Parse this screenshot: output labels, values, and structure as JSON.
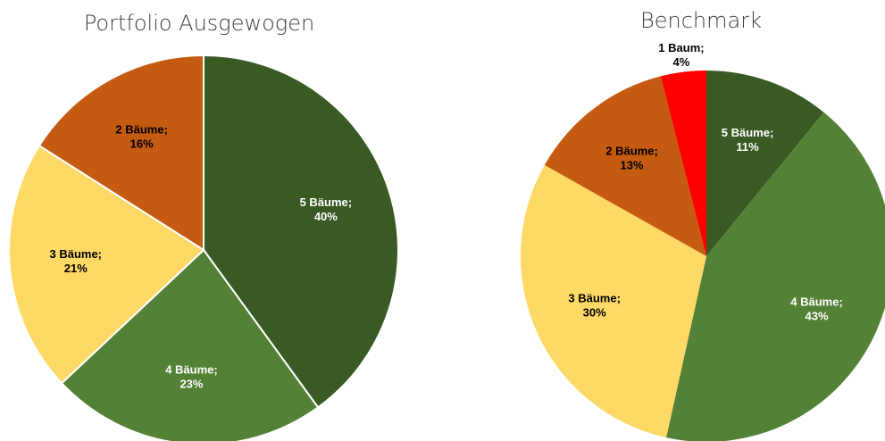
{
  "chart_data": [
    {
      "type": "pie",
      "title": "Portfolio Ausgewogen",
      "categories": [
        "5 Bäume;",
        "4 Bäume;",
        "3 Bäume;",
        "2 Bäume;"
      ],
      "values": [
        40,
        23,
        21,
        16
      ],
      "value_labels": [
        "40%",
        "23%",
        "21%",
        "16%"
      ],
      "colors": [
        "#3a5a24",
        "#538135",
        "#ffd966",
        "#c55a11"
      ]
    },
    {
      "type": "pie",
      "title": "Benchmark",
      "categories": [
        "5 Bäume;",
        "4 Bäume;",
        "3 Bäume;",
        "2 Bäume;",
        "1 Baum;"
      ],
      "values": [
        11,
        43,
        30,
        13,
        4
      ],
      "value_labels": [
        "11%",
        "43%",
        "30%",
        "13%",
        "4%"
      ],
      "colors": [
        "#3a5a24",
        "#538135",
        "#ffd966",
        "#c55a11",
        "#ff0000"
      ]
    }
  ]
}
